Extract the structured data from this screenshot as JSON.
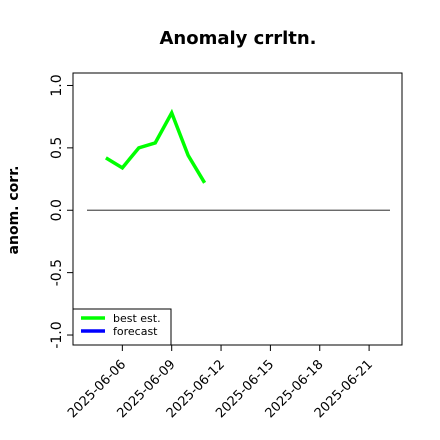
{
  "chart_data": {
    "type": "line",
    "title": "Anomaly crrltn.",
    "y_label": "anom. corr.",
    "x": [
      "2025-06-05",
      "2025-06-06",
      "2025-06-07",
      "2025-06-08",
      "2025-06-09",
      "2025-06-10",
      "2025-06-11"
    ],
    "series": [
      {
        "name": "best est.",
        "color": "#00ff00",
        "values": [
          0.42,
          0.34,
          0.5,
          0.54,
          0.78,
          0.44,
          0.22
        ]
      },
      {
        "name": "forecast",
        "color": "#0000ff",
        "values": [
          null,
          null,
          null,
          null,
          null,
          null,
          null
        ]
      }
    ],
    "xlim": [
      "2025-06-03",
      "2025-06-23"
    ],
    "xticks": [
      "2025-06-06",
      "2025-06-09",
      "2025-06-12",
      "2025-06-15",
      "2025-06-18",
      "2025-06-21"
    ],
    "highlight_tick": "2025-06-12",
    "highlight_color": "#228b22",
    "ylim": [
      -1.08,
      1.1
    ],
    "yticks": [
      {
        "value": -1,
        "label": "-1.0"
      },
      -0.5,
      {
        "value": 0,
        "label": "0.0"
      },
      0.5,
      {
        "value": 1,
        "label": "1.0"
      }
    ],
    "hline": 0,
    "hline_color": "#555555",
    "legend": "bottom-left"
  }
}
